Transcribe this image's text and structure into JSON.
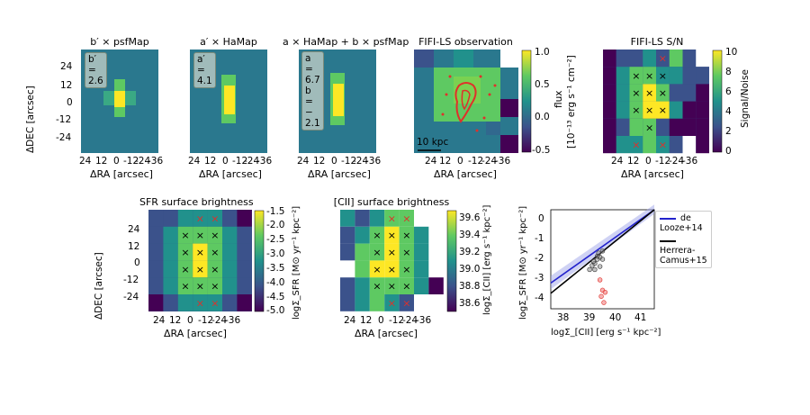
{
  "chart_data": [
    {
      "type": "heatmap",
      "title": "b′ × psfMap",
      "annotation": [
        "b′ = 2.6"
      ],
      "xlabel": "ΔRA [arcsec]",
      "ylabel": "ΔDEC [arcsec]",
      "xticks": [
        "24",
        "12",
        "0",
        "-12",
        "-24",
        "-36"
      ],
      "yticks": [
        "24",
        "12",
        "0",
        "-12",
        "-24"
      ]
    },
    {
      "type": "heatmap",
      "title": "a′ × HaMap",
      "annotation": [
        "a′ = 4.1"
      ],
      "xlabel": "ΔRA [arcsec]",
      "xticks": [
        "24",
        "12",
        "0",
        "-12",
        "-24",
        "-36"
      ]
    },
    {
      "type": "heatmap",
      "title": "a × HaMap + b × psfMap",
      "annotation": [
        "a = 6.7",
        "b = − 2.1"
      ],
      "xlabel": "ΔRA [arcsec]",
      "xticks": [
        "24",
        "12",
        "0",
        "-12",
        "-24",
        "-36"
      ]
    },
    {
      "type": "heatmap",
      "title": "FIFI-LS observation",
      "scalebar": "10 kpc",
      "xlabel": "ΔRA [arcsec]",
      "xticks": [
        "24",
        "12",
        "0",
        "-12",
        "-24",
        "-36"
      ],
      "colorbar": {
        "label_top": "flux",
        "label_bottom": "[10⁻¹³ erg s⁻¹ cm⁻²]",
        "ticks": [
          "1.0",
          "0.5",
          "0.0",
          "-0.5"
        ],
        "range": [
          -0.5,
          1.0
        ]
      }
    },
    {
      "type": "heatmap",
      "title": "FIFI-LS S/N",
      "xlabel": "ΔRA [arcsec]",
      "xticks": [
        "24",
        "12",
        "0",
        "-12",
        "-24",
        "-36"
      ],
      "colorbar": {
        "label": "Signal/Noise",
        "ticks": [
          "10",
          "8",
          "6",
          "4",
          "2",
          "0"
        ],
        "range": [
          0,
          10
        ]
      }
    },
    {
      "type": "heatmap",
      "title": "SFR surface brightness",
      "xlabel": "ΔRA [arcsec]",
      "ylabel": "ΔDEC [arcsec]",
      "xticks": [
        "24",
        "12",
        "0",
        "-12",
        "-24",
        "-36"
      ],
      "yticks": [
        "24",
        "12",
        "0",
        "-12",
        "-24"
      ],
      "colorbar": {
        "label": "logΣ_SFR [M⊙ yr⁻¹ kpc⁻²]",
        "ticks": [
          "-1.5",
          "-2.0",
          "-2.5",
          "-3.0",
          "-3.5",
          "-4.0",
          "-4.5",
          "-5.0"
        ],
        "range": [
          -5.0,
          -1.5
        ]
      }
    },
    {
      "type": "heatmap",
      "title": "[CII] surface brightness",
      "xlabel": "ΔRA [arcsec]",
      "xticks": [
        "24",
        "12",
        "0",
        "-12",
        "-24",
        "-36"
      ],
      "colorbar": {
        "label": "logΣ_[CII] [erg s⁻¹ kpc⁻²]",
        "ticks": [
          "39.6",
          "39.4",
          "39.2",
          "39.0",
          "38.8",
          "38.6"
        ],
        "range": [
          38.5,
          39.7
        ]
      }
    },
    {
      "type": "scatter",
      "xlabel": "logΣ_[CII] [erg s⁻¹ kpc⁻²]",
      "ylabel": "logΣ_SFR [M⊙ yr⁻¹ kpc⁻²]",
      "xlim": [
        37.5,
        41.5
      ],
      "ylim": [
        -4.5,
        0.3
      ],
      "xticks": [
        "38",
        "39",
        "40",
        "41"
      ],
      "yticks": [
        "0",
        "-1",
        "-2",
        "-3",
        "-4"
      ],
      "legend": [
        "de Looze+14",
        "Herrera-Camus+15"
      ],
      "legend_placement": "top-right"
    }
  ],
  "colors": {
    "viridis_low": "#440154",
    "viridis_mid": "#21918c",
    "viridis_high": "#fde725",
    "markers_red": "#e0302a",
    "line_blue": "#2222cc",
    "line_black": "#000000"
  }
}
